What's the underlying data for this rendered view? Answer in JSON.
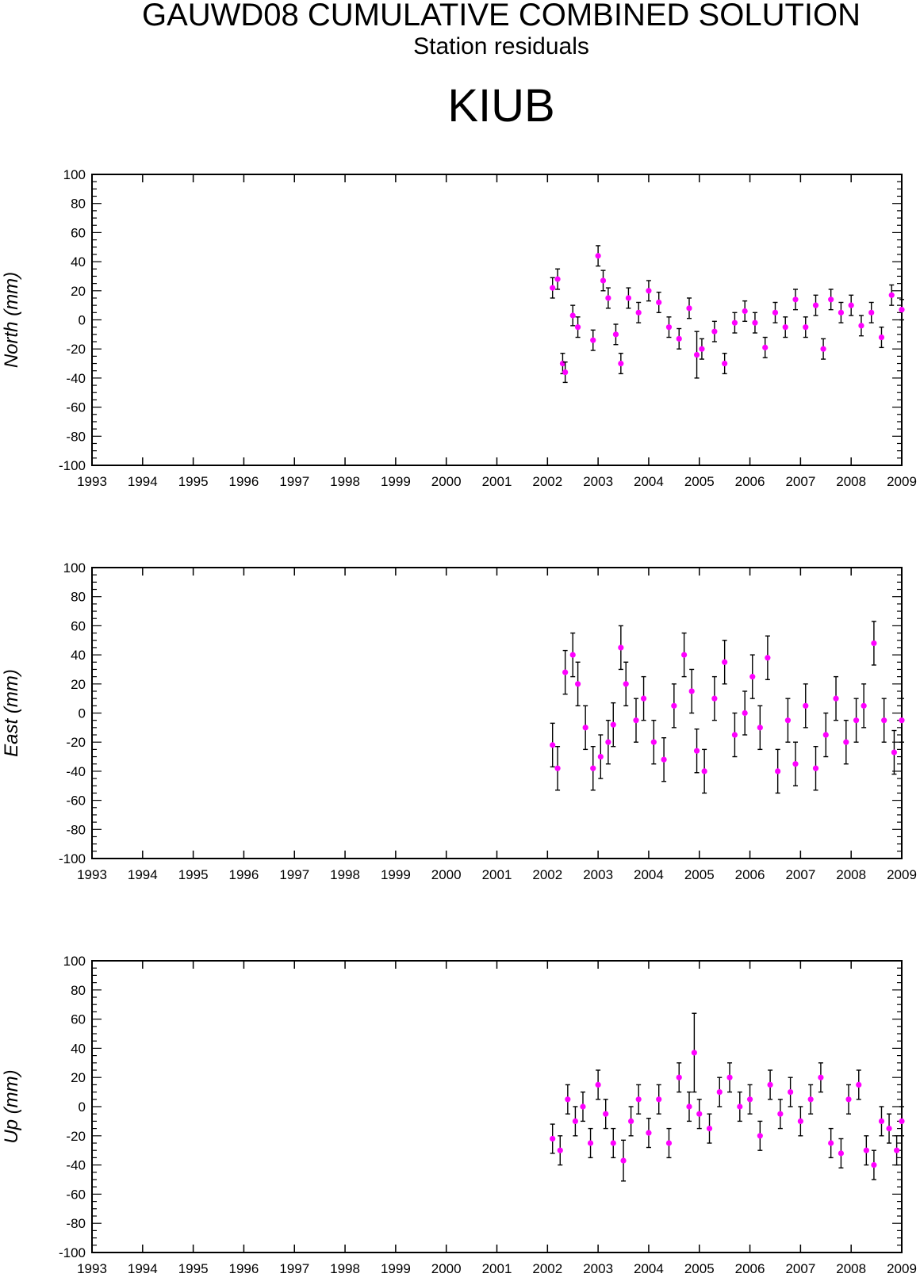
{
  "header": {
    "title": "GAUWD08 CUMULATIVE COMBINED SOLUTION",
    "subtitle": "Station residuals",
    "station": "KIUB"
  },
  "colors": {
    "marker": "#ff00ff",
    "errorbar": "#000000",
    "axis": "#000000"
  },
  "chart_data": [
    {
      "type": "scatter",
      "ylabel": "North (mm)",
      "xlim": [
        1993,
        2009
      ],
      "ylim": [
        -100,
        100
      ],
      "x_ticks": [
        "1993",
        "1994",
        "1995",
        "1996",
        "1997",
        "1998",
        "1999",
        "2000",
        "2001",
        "2002",
        "2003",
        "2004",
        "2005",
        "2006",
        "2007",
        "2008",
        "2009"
      ],
      "y_ticks": [
        "100",
        "80",
        "60",
        "40",
        "20",
        "0",
        "-20",
        "-40",
        "-60",
        "-80",
        "-100"
      ],
      "series": [
        {
          "x": [
            2002.1,
            2002.2,
            2002.3,
            2002.35,
            2002.5,
            2002.6,
            2002.9,
            2003.0,
            2003.1,
            2003.2,
            2003.35,
            2003.45,
            2003.6,
            2003.8,
            2004.0,
            2004.2,
            2004.4,
            2004.6,
            2004.8,
            2004.95,
            2005.05,
            2005.3,
            2005.5,
            2005.7,
            2005.9,
            2006.1,
            2006.3,
            2006.5,
            2006.7,
            2006.9,
            2007.1,
            2007.3,
            2007.45,
            2007.6,
            2007.8,
            2008.0,
            2008.2,
            2008.4,
            2008.6,
            2008.8,
            2009.0
          ],
          "y": [
            22,
            28,
            -30,
            -36,
            3,
            -5,
            -14,
            44,
            27,
            15,
            -10,
            -30,
            15,
            5,
            20,
            12,
            -5,
            -13,
            8,
            -24,
            -20,
            -8,
            -30,
            -2,
            6,
            -2,
            -19,
            5,
            -5,
            14,
            -5,
            10,
            -20,
            14,
            5,
            10,
            -4,
            5,
            -12,
            17,
            7
          ],
          "err": [
            7,
            7,
            7,
            7,
            7,
            7,
            7,
            7,
            7,
            7,
            7,
            7,
            7,
            7,
            7,
            7,
            7,
            7,
            7,
            16,
            7,
            7,
            7,
            7,
            7,
            7,
            7,
            7,
            7,
            7,
            7,
            7,
            7,
            7,
            7,
            7,
            7,
            7,
            7,
            7,
            7
          ]
        }
      ]
    },
    {
      "type": "scatter",
      "ylabel": "East (mm)",
      "xlim": [
        1993,
        2009
      ],
      "ylim": [
        -100,
        100
      ],
      "x_ticks": [
        "1993",
        "1994",
        "1995",
        "1996",
        "1997",
        "1998",
        "1999",
        "2000",
        "2001",
        "2002",
        "2003",
        "2004",
        "2005",
        "2006",
        "2007",
        "2008",
        "2009"
      ],
      "y_ticks": [
        "100",
        "80",
        "60",
        "40",
        "20",
        "0",
        "-20",
        "-40",
        "-60",
        "-80",
        "-100"
      ],
      "series": [
        {
          "x": [
            2002.1,
            2002.2,
            2002.35,
            2002.5,
            2002.6,
            2002.75,
            2002.9,
            2003.05,
            2003.2,
            2003.3,
            2003.45,
            2003.55,
            2003.75,
            2003.9,
            2004.1,
            2004.3,
            2004.5,
            2004.7,
            2004.85,
            2004.95,
            2005.1,
            2005.3,
            2005.5,
            2005.7,
            2005.9,
            2006.05,
            2006.2,
            2006.35,
            2006.55,
            2006.75,
            2006.9,
            2007.1,
            2007.3,
            2007.5,
            2007.7,
            2007.9,
            2008.1,
            2008.25,
            2008.45,
            2008.65,
            2008.85,
            2009.0
          ],
          "y": [
            -22,
            -38,
            28,
            40,
            20,
            -10,
            -38,
            -30,
            -20,
            -8,
            45,
            20,
            -5,
            10,
            -20,
            -32,
            5,
            40,
            15,
            -26,
            -40,
            10,
            35,
            -15,
            0,
            25,
            -10,
            38,
            -40,
            -5,
            -35,
            5,
            -38,
            -15,
            10,
            -20,
            -5,
            5,
            48,
            -5,
            -27,
            -5
          ],
          "err": [
            15,
            15,
            15,
            15,
            15,
            15,
            15,
            15,
            15,
            15,
            15,
            15,
            15,
            15,
            15,
            15,
            15,
            15,
            15,
            15,
            15,
            15,
            15,
            15,
            15,
            15,
            15,
            15,
            15,
            15,
            15,
            15,
            15,
            15,
            15,
            15,
            15,
            15,
            15,
            15,
            15,
            15
          ]
        }
      ]
    },
    {
      "type": "scatter",
      "ylabel": "Up (mm)",
      "xlim": [
        1993,
        2009
      ],
      "ylim": [
        -100,
        100
      ],
      "x_ticks": [
        "1993",
        "1994",
        "1995",
        "1996",
        "1997",
        "1998",
        "1999",
        "2000",
        "2001",
        "2002",
        "2003",
        "2004",
        "2005",
        "2006",
        "2007",
        "2008",
        "2009"
      ],
      "y_ticks": [
        "100",
        "80",
        "60",
        "40",
        "20",
        "0",
        "-20",
        "-40",
        "-60",
        "-80",
        "-100"
      ],
      "series": [
        {
          "x": [
            2002.1,
            2002.25,
            2002.4,
            2002.55,
            2002.7,
            2002.85,
            2003.0,
            2003.15,
            2003.3,
            2003.5,
            2003.65,
            2003.8,
            2004.0,
            2004.2,
            2004.4,
            2004.6,
            2004.8,
            2004.9,
            2005.0,
            2005.2,
            2005.4,
            2005.6,
            2005.8,
            2006.0,
            2006.2,
            2006.4,
            2006.6,
            2006.8,
            2007.0,
            2007.2,
            2007.4,
            2007.6,
            2007.8,
            2007.95,
            2008.15,
            2008.3,
            2008.45,
            2008.6,
            2008.75,
            2008.9,
            2009.0
          ],
          "y": [
            -22,
            -30,
            5,
            -10,
            0,
            -25,
            15,
            -5,
            -25,
            -37,
            -10,
            5,
            -18,
            5,
            -25,
            20,
            0,
            37,
            -5,
            -15,
            10,
            20,
            0,
            5,
            -20,
            15,
            -5,
            10,
            -10,
            5,
            20,
            -25,
            -32,
            5,
            15,
            -30,
            -40,
            -10,
            -15,
            -30,
            -10
          ],
          "err": [
            10,
            10,
            10,
            10,
            10,
            10,
            10,
            10,
            10,
            14,
            10,
            10,
            10,
            10,
            10,
            10,
            10,
            27,
            10,
            10,
            10,
            10,
            10,
            10,
            10,
            10,
            10,
            10,
            10,
            10,
            10,
            10,
            10,
            10,
            10,
            10,
            10,
            10,
            10,
            10,
            10
          ]
        }
      ]
    }
  ]
}
